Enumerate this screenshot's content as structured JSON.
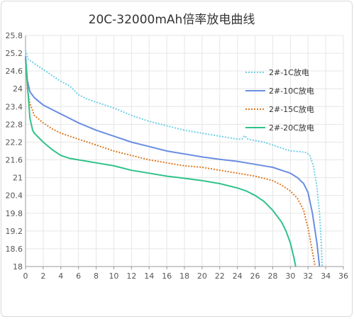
{
  "chart_data": {
    "type": "line",
    "title": "20C-32000mAh倍率放电曲线",
    "xlabel": "",
    "ylabel": "",
    "xlim": [
      0,
      36
    ],
    "ylim": [
      18,
      25.8
    ],
    "x_ticks": [
      "0",
      "2",
      "4",
      "6",
      "8",
      "10",
      "12",
      "14",
      "16",
      "18",
      "20",
      "22",
      "24",
      "26",
      "28",
      "30",
      "32",
      "34",
      "36"
    ],
    "y_ticks": [
      "18",
      "18.6",
      "19.2",
      "19.8",
      "20.4",
      "21",
      "21.6",
      "22.2",
      "22.8",
      "23.4",
      "24",
      "24.6",
      "25.2",
      "25.8"
    ],
    "grid": true,
    "legend_position": "right",
    "series": [
      {
        "name": "2#-1C放电",
        "color": "#6ecfe8",
        "style": "dotted",
        "points": [
          [
            0,
            25.3
          ],
          [
            0.3,
            25.0
          ],
          [
            1,
            24.85
          ],
          [
            2,
            24.65
          ],
          [
            3,
            24.45
          ],
          [
            4,
            24.25
          ],
          [
            5,
            24.1
          ],
          [
            5.5,
            23.95
          ],
          [
            6,
            23.8
          ],
          [
            7,
            23.65
          ],
          [
            8,
            23.55
          ],
          [
            10,
            23.35
          ],
          [
            12,
            23.1
          ],
          [
            14,
            22.9
          ],
          [
            16,
            22.75
          ],
          [
            18,
            22.6
          ],
          [
            20,
            22.5
          ],
          [
            22,
            22.4
          ],
          [
            24,
            22.3
          ],
          [
            24.5,
            22.3
          ],
          [
            24.8,
            22.42
          ],
          [
            25.2,
            22.3
          ],
          [
            26,
            22.25
          ],
          [
            27,
            22.2
          ],
          [
            28,
            22.1
          ],
          [
            29,
            22.0
          ],
          [
            30,
            21.9
          ],
          [
            31,
            21.88
          ],
          [
            31.8,
            21.85
          ],
          [
            32.2,
            21.75
          ],
          [
            32.6,
            21.4
          ],
          [
            33,
            20.7
          ],
          [
            33.3,
            19.8
          ],
          [
            33.5,
            18.8
          ],
          [
            33.6,
            18.0
          ]
        ]
      },
      {
        "name": "2#-10C放电",
        "color": "#6a8ee0",
        "style": "solid",
        "points": [
          [
            0,
            25.1
          ],
          [
            0.2,
            24.3
          ],
          [
            0.5,
            23.9
          ],
          [
            1,
            23.7
          ],
          [
            2,
            23.45
          ],
          [
            3,
            23.3
          ],
          [
            4,
            23.15
          ],
          [
            5,
            23.0
          ],
          [
            6,
            22.85
          ],
          [
            8,
            22.6
          ],
          [
            10,
            22.4
          ],
          [
            12,
            22.2
          ],
          [
            14,
            22.05
          ],
          [
            16,
            21.9
          ],
          [
            18,
            21.8
          ],
          [
            20,
            21.7
          ],
          [
            22,
            21.62
          ],
          [
            24,
            21.55
          ],
          [
            26,
            21.45
          ],
          [
            28,
            21.35
          ],
          [
            29,
            21.25
          ],
          [
            30,
            21.15
          ],
          [
            30.8,
            21.0
          ],
          [
            31.5,
            20.8
          ],
          [
            32,
            20.5
          ],
          [
            32.5,
            19.8
          ],
          [
            33,
            18.8
          ],
          [
            33.3,
            18.0
          ]
        ]
      },
      {
        "name": "2#-15C放电",
        "color": "#e07a22",
        "style": "dotted",
        "points": [
          [
            0,
            25.0
          ],
          [
            0.2,
            24.0
          ],
          [
            0.5,
            23.5
          ],
          [
            1,
            23.1
          ],
          [
            2,
            22.85
          ],
          [
            3,
            22.65
          ],
          [
            4,
            22.5
          ],
          [
            5,
            22.4
          ],
          [
            6,
            22.3
          ],
          [
            8,
            22.1
          ],
          [
            10,
            21.9
          ],
          [
            12,
            21.75
          ],
          [
            14,
            21.6
          ],
          [
            16,
            21.5
          ],
          [
            18,
            21.4
          ],
          [
            20,
            21.35
          ],
          [
            22,
            21.25
          ],
          [
            24,
            21.15
          ],
          [
            26,
            21.05
          ],
          [
            28,
            20.9
          ],
          [
            29,
            20.75
          ],
          [
            30,
            20.55
          ],
          [
            30.8,
            20.3
          ],
          [
            31.5,
            19.9
          ],
          [
            32,
            19.3
          ],
          [
            32.5,
            18.5
          ],
          [
            32.8,
            18.0
          ]
        ]
      },
      {
        "name": "2#-20C放电",
        "color": "#2fc289",
        "style": "solid",
        "points": [
          [
            0,
            25.0
          ],
          [
            0.2,
            24.2
          ],
          [
            0.5,
            23.0
          ],
          [
            0.8,
            22.6
          ],
          [
            1,
            22.5
          ],
          [
            2,
            22.2
          ],
          [
            3,
            21.95
          ],
          [
            4,
            21.75
          ],
          [
            5,
            21.65
          ],
          [
            6,
            21.6
          ],
          [
            8,
            21.5
          ],
          [
            10,
            21.4
          ],
          [
            12,
            21.25
          ],
          [
            14,
            21.15
          ],
          [
            16,
            21.05
          ],
          [
            18,
            20.98
          ],
          [
            20,
            20.9
          ],
          [
            22,
            20.8
          ],
          [
            24,
            20.65
          ],
          [
            25,
            20.55
          ],
          [
            26,
            20.4
          ],
          [
            27,
            20.2
          ],
          [
            28,
            19.9
          ],
          [
            29,
            19.5
          ],
          [
            29.5,
            19.2
          ],
          [
            30,
            18.8
          ],
          [
            30.4,
            18.3
          ],
          [
            30.6,
            18.0
          ]
        ]
      }
    ]
  }
}
